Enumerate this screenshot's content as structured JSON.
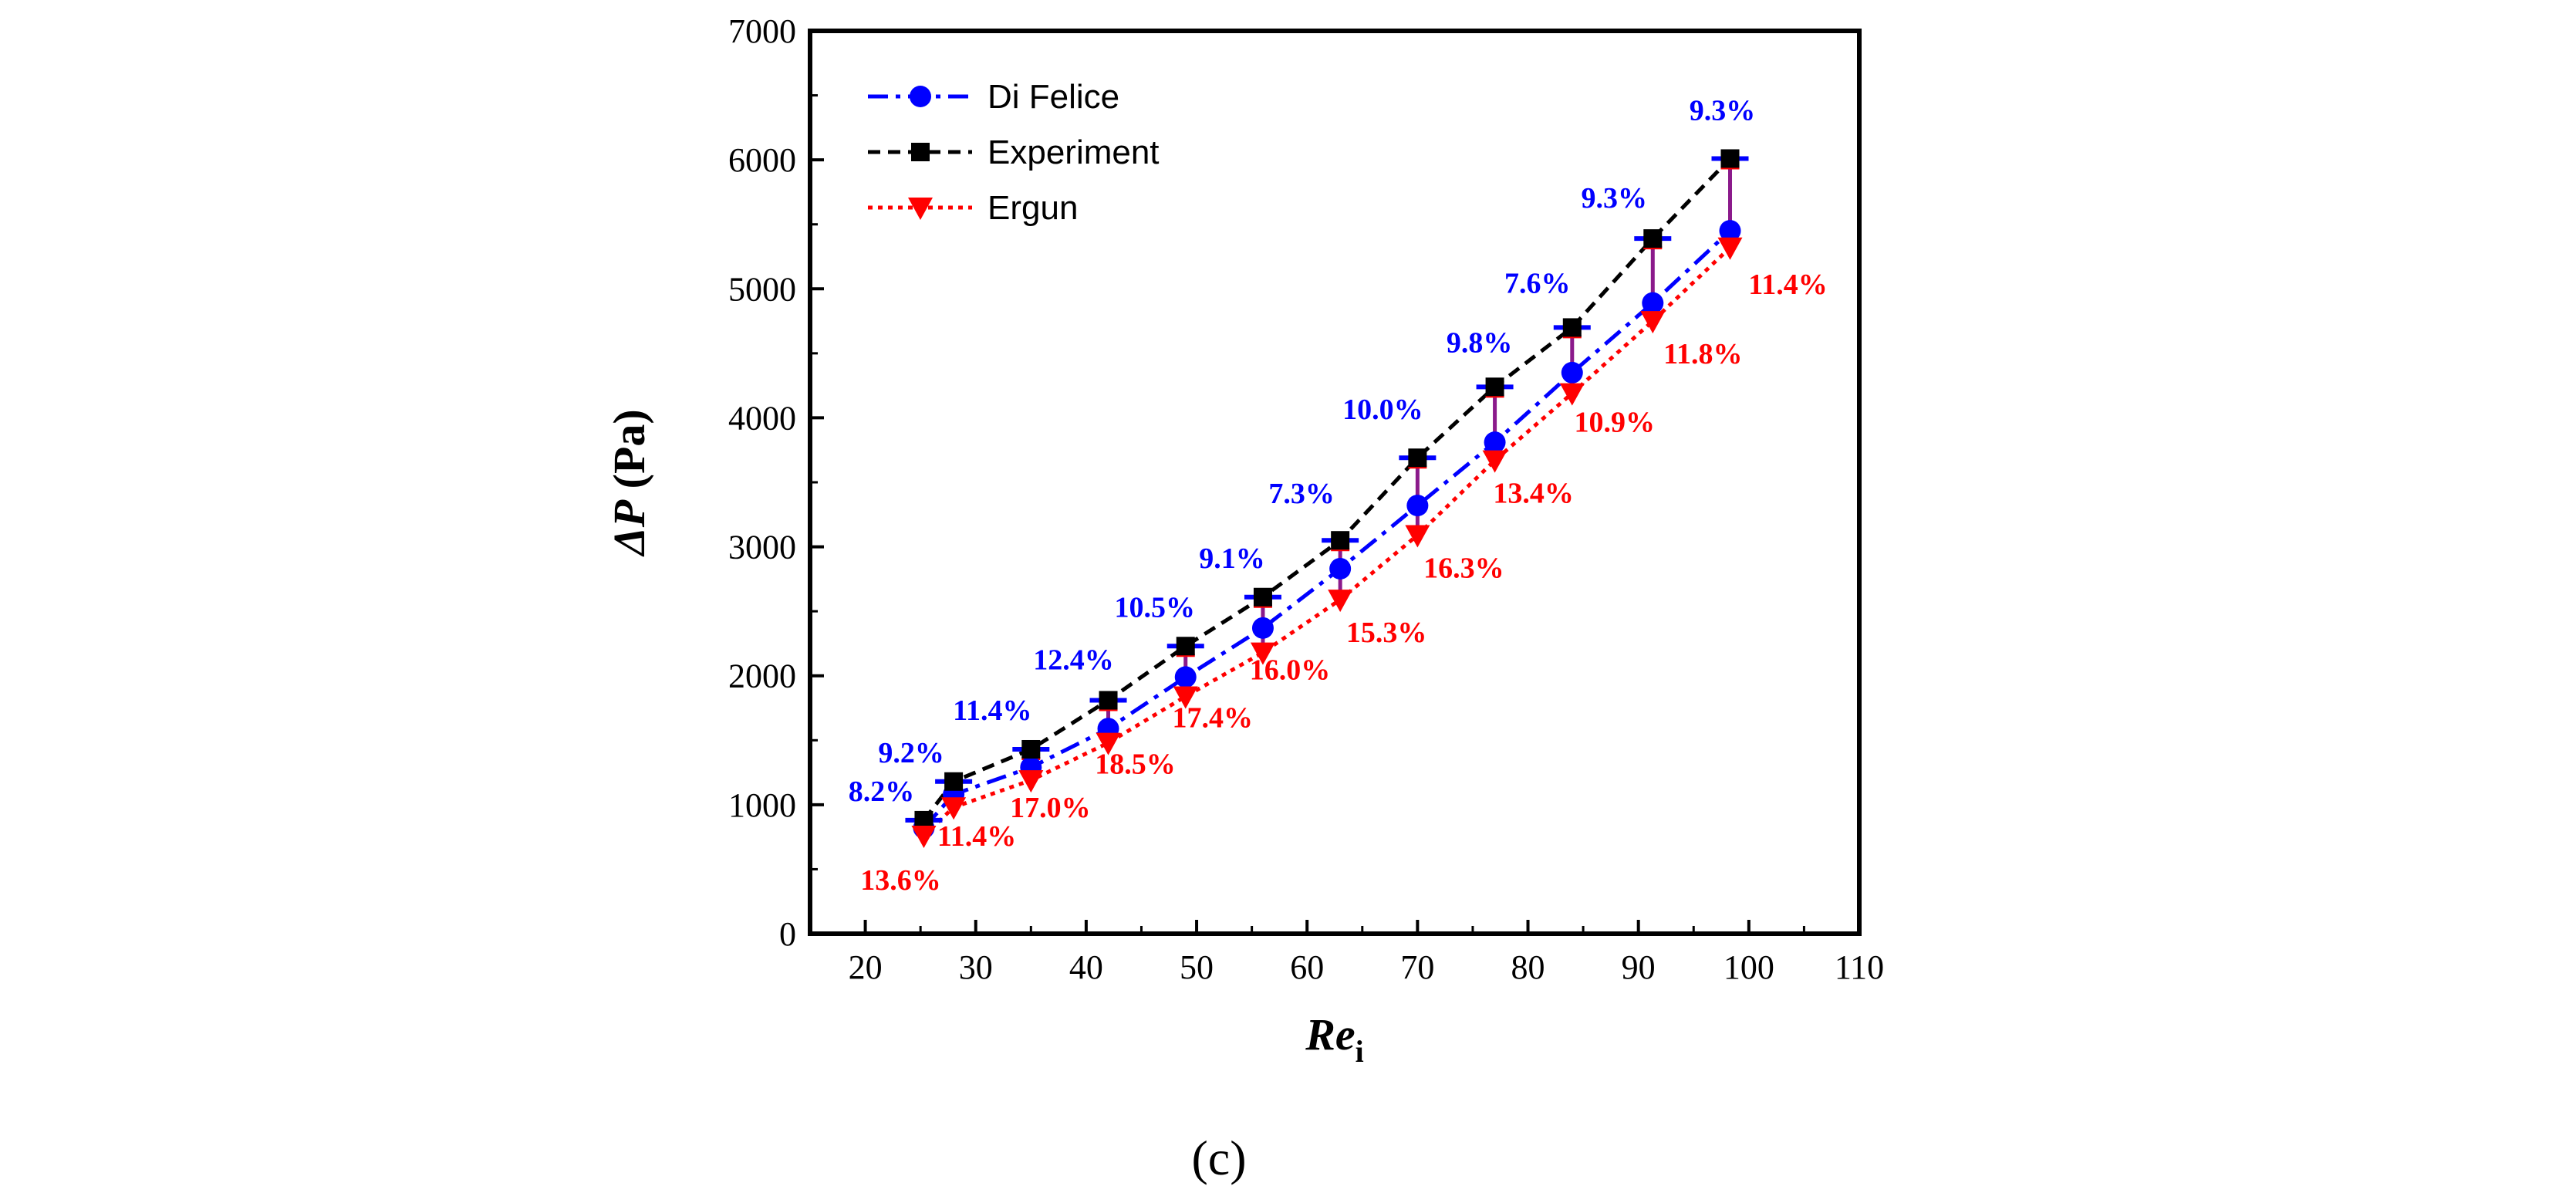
{
  "chart_data": {
    "type": "line",
    "xlabel": "Re",
    "xlabel_sub": "i",
    "ylabel_prefix": "ΔP",
    "ylabel_suffix": " (Pa)",
    "xlim": [
      15,
      110
    ],
    "ylim": [
      0,
      7000
    ],
    "xticks": [
      20,
      30,
      40,
      50,
      60,
      70,
      80,
      90,
      100,
      110
    ],
    "yticks": [
      0,
      1000,
      2000,
      3000,
      4000,
      5000,
      6000,
      7000
    ],
    "panel_label": "(c)",
    "legend_position": "top-left",
    "x": [
      25.3,
      28.0,
      35.0,
      42.0,
      49.0,
      56.0,
      63.0,
      70.0,
      77.0,
      84.0,
      91.3,
      98.3
    ],
    "series": [
      {
        "name": "Di Felice",
        "color": "#0000ff",
        "marker": "circle",
        "line_style": "dash-dot",
        "values": [
          820,
          1080,
          1290,
          1590,
          1990,
          2370,
          2830,
          3320,
          3810,
          4350,
          4890,
          5450
        ]
      },
      {
        "name": "Experiment",
        "color": "#000000",
        "marker": "square",
        "line_style": "dashed",
        "values": [
          880,
          1180,
          1430,
          1810,
          2230,
          2610,
          3050,
          3690,
          4240,
          4700,
          5390,
          6010
        ]
      },
      {
        "name": "Ergun",
        "color": "#ff0000",
        "marker": "triangle-down",
        "line_style": "dotted",
        "values": [
          760,
          980,
          1190,
          1480,
          1840,
          2180,
          2590,
          3090,
          3670,
          4190,
          4750,
          5320
        ]
      }
    ],
    "annotations": {
      "di_felice_errors": [
        "8.2%",
        "9.2%",
        "11.4%",
        "12.4%",
        "10.5%",
        "9.1%",
        "7.3%",
        "10.0%",
        "9.8%",
        "7.6%",
        "9.3%",
        "9.3%"
      ],
      "ergun_errors": [
        "13.6%",
        "11.4%",
        "17.0%",
        "18.5%",
        "17.4%",
        "16.0%",
        "15.3%",
        "16.3%",
        "13.4%",
        "10.9%",
        "11.8%",
        "11.4%"
      ]
    }
  }
}
